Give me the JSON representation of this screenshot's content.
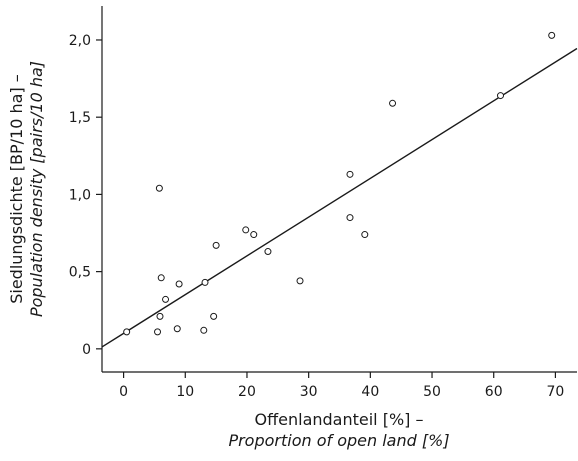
{
  "chart_data": {
    "type": "scatter",
    "xlabel_line1": "Offenlandanteil [%] –",
    "xlabel_line2": "Proportion of open land [%]",
    "ylabel_line1": "Siedlungsdichte [BP/10 ha] –",
    "ylabel_line2": "Population density [pairs/10 ha]",
    "xlim": [
      -3.5,
      73.5
    ],
    "ylim": [
      -0.15,
      2.22
    ],
    "x_ticks": [
      0,
      10,
      20,
      30,
      40,
      50,
      60,
      70
    ],
    "x_tick_labels": [
      "0",
      "10",
      "20",
      "30",
      "40",
      "50",
      "60",
      "70"
    ],
    "y_ticks": [
      0,
      0.5,
      1.0,
      1.5,
      2.0
    ],
    "y_tick_labels": [
      "0",
      "0,5",
      "1,0",
      "1,5",
      "2,0"
    ],
    "points": [
      {
        "x": 0.5,
        "y": 0.11
      },
      {
        "x": 5.5,
        "y": 0.11
      },
      {
        "x": 5.8,
        "y": 1.04
      },
      {
        "x": 5.9,
        "y": 0.21
      },
      {
        "x": 6.1,
        "y": 0.46
      },
      {
        "x": 6.8,
        "y": 0.32
      },
      {
        "x": 8.7,
        "y": 0.13
      },
      {
        "x": 9.0,
        "y": 0.42
      },
      {
        "x": 13.0,
        "y": 0.12
      },
      {
        "x": 13.2,
        "y": 0.43
      },
      {
        "x": 14.6,
        "y": 0.21
      },
      {
        "x": 15.0,
        "y": 0.67
      },
      {
        "x": 19.8,
        "y": 0.77
      },
      {
        "x": 21.1,
        "y": 0.74
      },
      {
        "x": 23.4,
        "y": 0.63
      },
      {
        "x": 28.6,
        "y": 0.44
      },
      {
        "x": 36.7,
        "y": 1.13
      },
      {
        "x": 36.7,
        "y": 0.85
      },
      {
        "x": 39.1,
        "y": 0.74
      },
      {
        "x": 43.6,
        "y": 1.59
      },
      {
        "x": 61.1,
        "y": 1.64
      },
      {
        "x": 69.4,
        "y": 2.03
      }
    ],
    "fit_line": {
      "intercept": 0.1,
      "slope": 0.0251
    }
  }
}
